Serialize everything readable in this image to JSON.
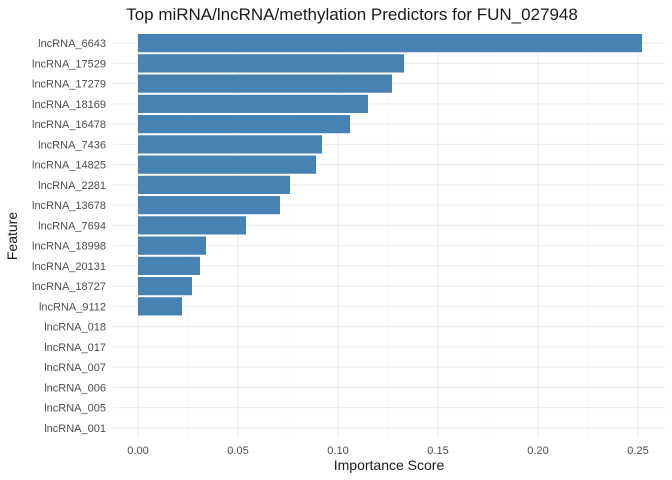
{
  "chart_data": {
    "type": "bar",
    "orientation": "horizontal",
    "title": "Top miRNA/lncRNA/methylation Predictors for FUN_027948",
    "xlabel": "Importance Score",
    "ylabel": "Feature",
    "xlim": [
      0,
      0.262
    ],
    "x_ticks": [
      0.0,
      0.05,
      0.1,
      0.15,
      0.2,
      0.25
    ],
    "x_tick_labels": [
      "0.00",
      "0.05",
      "0.10",
      "0.15",
      "0.20",
      "0.25"
    ],
    "grid": true,
    "bar_color": "#4682B4",
    "categories": [
      "lncRNA_6643",
      "lncRNA_17529",
      "lncRNA_17279",
      "lncRNA_18169",
      "lncRNA_16478",
      "lncRNA_7436",
      "lncRNA_14825",
      "lncRNA_2281",
      "lncRNA_13678",
      "lncRNA_7694",
      "lncRNA_18998",
      "lncRNA_20131",
      "lncRNA_18727",
      "lncRNA_9112",
      "lncRNA_018",
      "lncRNA_017",
      "lncRNA_007",
      "lncRNA_006",
      "lncRNA_005",
      "lncRNA_001"
    ],
    "values": [
      0.252,
      0.133,
      0.127,
      0.115,
      0.106,
      0.092,
      0.089,
      0.076,
      0.071,
      0.054,
      0.034,
      0.031,
      0.027,
      0.022,
      0.0,
      0.0,
      0.0,
      0.0,
      0.0,
      0.0
    ]
  }
}
